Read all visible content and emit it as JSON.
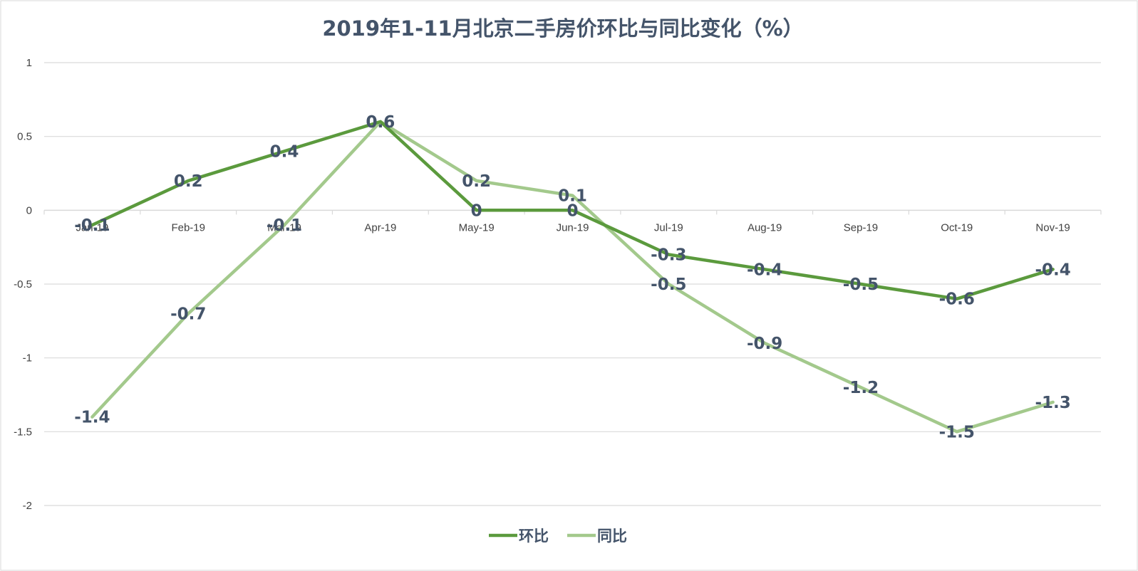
{
  "chart_data": {
    "type": "line",
    "title": "2019年1-11月北京二手房价环比与同比变化（%）",
    "xlabel": "",
    "ylabel": "",
    "categories": [
      "Jan-19",
      "Feb-19",
      "Mar-19",
      "Apr-19",
      "May-19",
      "Jun-19",
      "Jul-19",
      "Aug-19",
      "Sep-19",
      "Oct-19",
      "Nov-19"
    ],
    "ylim": [
      -2,
      1
    ],
    "yticks": [
      1,
      0.5,
      0,
      -0.5,
      -1,
      -1.5,
      -2
    ],
    "ytick_labels": [
      "1",
      "0.5",
      "0",
      "-0.5",
      "-1",
      "-1.5",
      "-2"
    ],
    "grid": true,
    "legend_position": "bottom",
    "series": [
      {
        "name": "环比",
        "color": "#5b9a3d",
        "values": [
          -0.1,
          0.2,
          0.4,
          0.6,
          0,
          0,
          -0.3,
          -0.4,
          -0.5,
          -0.6,
          -0.4
        ],
        "labels": [
          "-0.1",
          "0.2",
          "0.4",
          "0.6",
          "0",
          "0",
          "-0.3",
          "-0.4",
          "-0.5",
          "-0.6",
          "-0.4"
        ]
      },
      {
        "name": "同比",
        "color": "#a3c98c",
        "values": [
          -1.4,
          -0.7,
          -0.1,
          0.6,
          0.2,
          0.1,
          -0.5,
          -0.9,
          -1.2,
          -1.5,
          -1.3
        ],
        "labels": [
          "-1.4",
          "-0.7",
          "-0.1",
          "0.6",
          "0.2",
          "0.1",
          "-0.5",
          "-0.9",
          "-1.2",
          "-1.5",
          "-1.3"
        ]
      }
    ]
  }
}
